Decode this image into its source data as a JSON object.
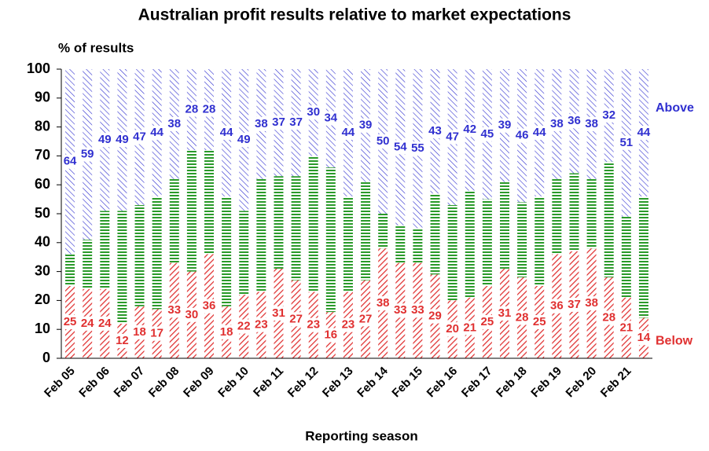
{
  "chart_data": {
    "type": "stacked_bar",
    "title": "Australian profit results relative to market expectations",
    "y_axis_label": "% of results",
    "x_axis_label": "Reporting season",
    "categories": [
      "Feb 05",
      null,
      "Feb 06",
      null,
      "Feb 07",
      null,
      "Feb 08",
      null,
      "Feb 09",
      null,
      "Feb 10",
      null,
      "Feb 11",
      null,
      "Feb 12",
      null,
      "Feb 13",
      null,
      "Feb 14",
      null,
      "Feb 15",
      null,
      "Feb 16",
      null,
      "Feb 17",
      null,
      "Feb 18",
      null,
      "Feb 19",
      null,
      "Feb 20",
      null,
      "Feb 21",
      null
    ],
    "series": [
      {
        "name": "Below",
        "color": "#e03030",
        "values": [
          25,
          24,
          24,
          12,
          18,
          17,
          33,
          30,
          36,
          18,
          22,
          23,
          31,
          27,
          23,
          16,
          23,
          27,
          38,
          33,
          33,
          29,
          20,
          21,
          25,
          31,
          28,
          25,
          36,
          37,
          38,
          28,
          21,
          14
        ]
      },
      {
        "color": "#2a9a2a",
        "values": [
          11,
          17,
          27,
          39,
          35,
          39,
          29,
          42,
          36,
          38,
          29,
          39,
          32,
          36,
          47,
          50,
          33,
          34,
          12,
          13,
          12,
          28,
          33,
          37,
          30,
          30,
          26,
          31,
          26,
          27,
          24,
          40,
          28,
          42
        ]
      },
      {
        "name": "Above",
        "color": "#3030d0",
        "values": [
          64,
          59,
          49,
          49,
          47,
          44,
          38,
          28,
          28,
          44,
          49,
          38,
          37,
          37,
          30,
          34,
          44,
          39,
          50,
          54,
          55,
          43,
          47,
          42,
          45,
          39,
          46,
          44,
          38,
          36,
          38,
          32,
          51,
          44
        ]
      }
    ],
    "ylim": [
      0,
      100
    ],
    "yticks": [
      0,
      10,
      20,
      30,
      40,
      50,
      60,
      70,
      80,
      90,
      100
    ]
  }
}
